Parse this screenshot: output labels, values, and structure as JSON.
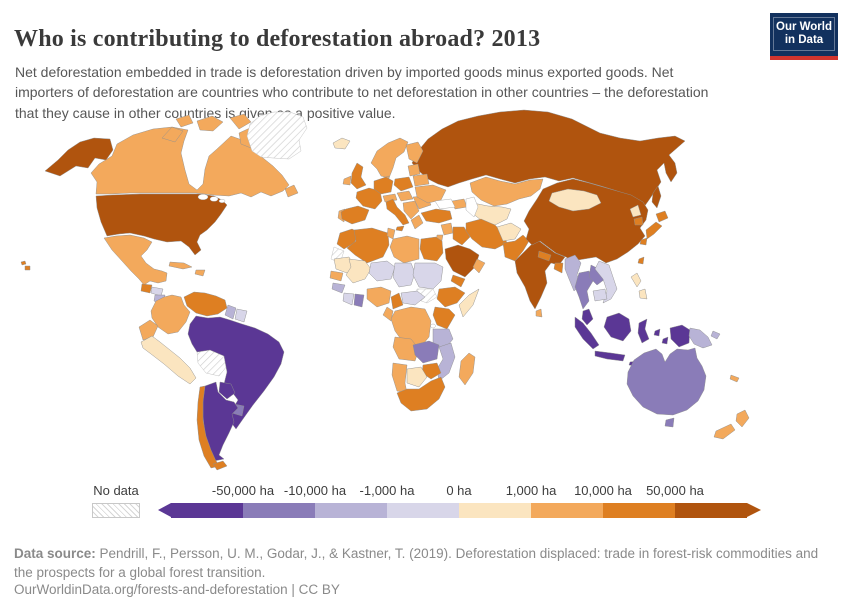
{
  "header": {
    "title": "Who is contributing to deforestation abroad? 2013",
    "logo": {
      "line1": "Our World",
      "line2": "in Data",
      "navy": "#12315e",
      "red": "#d2352e"
    }
  },
  "subtitle": "Net deforestation embedded in trade is deforestation driven by imported goods minus exported goods. Net importers of deforestation are countries who contribute to net deforestation in other countries – the deforestation that they cause in other countries is given as a positive value.",
  "legend": {
    "no_data_label": "No data",
    "tick_labels": [
      "-50,000 ha",
      "-10,000 ha",
      "-1,000 ha",
      "0 ha",
      "1,000 ha",
      "10,000 ha",
      "50,000 ha"
    ],
    "bin_colors": [
      "#5b3795",
      "#8a7cb8",
      "#b8b3d6",
      "#d8d6e9",
      "#fbe5c0",
      "#f3a95c",
      "#de7f22",
      "#b0540e"
    ]
  },
  "map": {
    "region_bins": {
      "alaska": 7,
      "usa": 7,
      "canada": 5,
      "arctic-islands": 5,
      "newfoundland": 5,
      "greenland": -1,
      "iceland": 4,
      "hawaii": 6,
      "mexico": 5,
      "guatemala": 6,
      "honduras": 3,
      "nicaragua": 2,
      "costa-rica": 4,
      "panama": 5,
      "cuba": 5,
      "hispaniola": 5,
      "colombia": 5,
      "venezuela": 6,
      "guyana": 2,
      "suriname": 3,
      "ecuador": 5,
      "peru": 4,
      "bolivia": -1,
      "brazil": 0,
      "paraguay": 0,
      "uruguay": 1,
      "argentina": 0,
      "chile": 6,
      "tierra-del-fuego": 6,
      "norway-sweden": 5,
      "finland": 5,
      "denmark": 5,
      "baltics": 5,
      "belarus": 5,
      "ireland": 5,
      "uk": 6,
      "france": 6,
      "portugal": 5,
      "spain": 6,
      "germany": 6,
      "alps": 5,
      "italy": 6,
      "sicily": 6,
      "poland": 6,
      "czech-hungary": 5,
      "balkans": 5,
      "greece": 5,
      "romania": 5,
      "ukraine": 5,
      "russia": 7,
      "sakhalin": 7,
      "kazakhstan": 5,
      "central-asia": 4,
      "caucasus": 5,
      "turkey": 6,
      "syria": 5,
      "levant": 5,
      "iraq": 6,
      "iran": 6,
      "saudi-arabia": 7,
      "yemen": 6,
      "oman": 5,
      "afghanistan": 4,
      "pakistan": 6,
      "india": 7,
      "nepal": 6,
      "bangladesh": 6,
      "sri-lanka": 5,
      "china": 7,
      "mongolia": 4,
      "north-korea": 4,
      "south-korea": 6,
      "japan": 6,
      "taiwan": 6,
      "myanmar": 2,
      "thailand": 1,
      "laos": 1,
      "vietnam": 3,
      "cambodia": 3,
      "malaysia-peninsula": 0,
      "sumatra": 0,
      "java": 0,
      "borneo": 0,
      "sulawesi": 0,
      "moluccas": 0,
      "lesser-sunda": 0,
      "west-papua": 0,
      "papua-new-guinea": 2,
      "philippines": 4,
      "morocco": 6,
      "western-sahara": -1,
      "algeria": 6,
      "tunisia": 5,
      "libya": 5,
      "egypt": 6,
      "mauritania": 4,
      "mali": 4,
      "niger": 3,
      "chad": 3,
      "sudan": 3,
      "south-sudan": -1,
      "ethiopia": 6,
      "somalia": 4,
      "senegal": 5,
      "guinea": 2,
      "ivory-coast": 3,
      "ghana": 1,
      "nigeria": 5,
      "cameroon": 6,
      "central-african-republic": 3,
      "congo-gabon": 5,
      "dr-congo": 5,
      "kenya": 6,
      "tanzania": 2,
      "angola": 5,
      "zambia": 1,
      "mozambique": 2,
      "zimbabwe": 6,
      "botswana": 4,
      "namibia": 5,
      "south-africa": 6,
      "madagascar": 5,
      "australia": 1,
      "tasmania": 1,
      "new-zealand-north": 5,
      "new-zealand-south": 5,
      "new-caledonia": 5
    }
  },
  "chart_data": {
    "type": "choropleth",
    "title": "Who is contributing to deforestation abroad? 2013",
    "year": 2013,
    "unit": "ha",
    "legend_position": "bottom",
    "bins": [
      {
        "label": "< -50,000 ha",
        "color": "#5b3795"
      },
      {
        "label": "-50,000 to -10,000 ha",
        "color": "#8a7cb8"
      },
      {
        "label": "-10,000 to -1,000 ha",
        "color": "#b8b3d6"
      },
      {
        "label": "-1,000 to 0 ha",
        "color": "#d8d6e9"
      },
      {
        "label": "0 to 1,000 ha",
        "color": "#fbe5c0"
      },
      {
        "label": "1,000 to 10,000 ha",
        "color": "#f3a95c"
      },
      {
        "label": "10,000 to 50,000 ha",
        "color": "#de7f22"
      },
      {
        "label": "> 50,000 ha",
        "color": "#b0540e"
      },
      {
        "label": "No data",
        "color": "hatched"
      }
    ],
    "countries": {
      "United States": "> 50,000 ha",
      "Russia": "> 50,000 ha",
      "China": "> 50,000 ha",
      "India": "> 50,000 ha",
      "Saudi Arabia": "> 50,000 ha",
      "United Kingdom": "10,000 to 50,000 ha",
      "France": "10,000 to 50,000 ha",
      "Germany": "10,000 to 50,000 ha",
      "Spain": "10,000 to 50,000 ha",
      "Italy": "10,000 to 50,000 ha",
      "Poland": "10,000 to 50,000 ha",
      "Turkey": "10,000 to 50,000 ha",
      "Morocco": "10,000 to 50,000 ha",
      "Algeria": "10,000 to 50,000 ha",
      "Egypt": "10,000 to 50,000 ha",
      "Ethiopia": "10,000 to 50,000 ha",
      "Kenya": "10,000 to 50,000 ha",
      "Zimbabwe": "10,000 to 50,000 ha",
      "South Africa": "10,000 to 50,000 ha",
      "Iran": "10,000 to 50,000 ha",
      "Iraq": "10,000 to 50,000 ha",
      "Pakistan": "10,000 to 50,000 ha",
      "Japan": "10,000 to 50,000 ha",
      "South Korea": "10,000 to 50,000 ha",
      "Chile": "10,000 to 50,000 ha",
      "Venezuela": "10,000 to 50,000 ha",
      "Guatemala": "10,000 to 50,000 ha",
      "Nepal": "10,000 to 50,000 ha",
      "Bangladesh": "10,000 to 50,000 ha",
      "Cameroon": "10,000 to 50,000 ha",
      "Yemen": "10,000 to 50,000 ha",
      "Canada": "1,000 to 10,000 ha",
      "Mexico": "1,000 to 10,000 ha",
      "Kazakhstan": "1,000 to 10,000 ha",
      "Libya": "1,000 to 10,000 ha",
      "Nigeria": "1,000 to 10,000 ha",
      "DR Congo": "1,000 to 10,000 ha",
      "Angola": "1,000 to 10,000 ha",
      "Namibia": "1,000 to 10,000 ha",
      "Madagascar": "1,000 to 10,000 ha",
      "Colombia": "1,000 to 10,000 ha",
      "Ecuador": "1,000 to 10,000 ha",
      "Cuba": "1,000 to 10,000 ha",
      "Sweden": "1,000 to 10,000 ha",
      "Norway": "1,000 to 10,000 ha",
      "Finland": "1,000 to 10,000 ha",
      "Ireland": "1,000 to 10,000 ha",
      "Ukraine": "1,000 to 10,000 ha",
      "Romania": "1,000 to 10,000 ha",
      "Sri Lanka": "1,000 to 10,000 ha",
      "New Zealand": "1,000 to 10,000 ha",
      "Senegal": "1,000 to 10,000 ha",
      "Peru": "0 to 1,000 ha",
      "Mongolia": "0 to 1,000 ha",
      "Afghanistan": "0 to 1,000 ha",
      "Uzbekistan": "0 to 1,000 ha",
      "Turkmenistan": "0 to 1,000 ha",
      "Mauritania": "0 to 1,000 ha",
      "Mali": "0 to 1,000 ha",
      "Botswana": "0 to 1,000 ha",
      "North Korea": "0 to 1,000 ha",
      "Philippines": "0 to 1,000 ha",
      "Somalia": "0 to 1,000 ha",
      "Iceland": "0 to 1,000 ha",
      "Costa Rica": "0 to 1,000 ha",
      "Sudan": "-1,000 to 0 ha",
      "Niger": "-1,000 to 0 ha",
      "Chad": "-1,000 to 0 ha",
      "Central African Republic": "-1,000 to 0 ha",
      "Cote d'Ivoire": "-1,000 to 0 ha",
      "Vietnam": "-1,000 to 0 ha",
      "Cambodia": "-1,000 to 0 ha",
      "Suriname": "-1,000 to 0 ha",
      "Honduras": "-1,000 to 0 ha",
      "Myanmar": "-10,000 to -1,000 ha",
      "Tanzania": "-10,000 to -1,000 ha",
      "Mozambique": "-10,000 to -1,000 ha",
      "Papua New Guinea": "-10,000 to -1,000 ha",
      "Guyana": "-10,000 to -1,000 ha",
      "Nicaragua": "-10,000 to -1,000 ha",
      "Guinea": "-10,000 to -1,000 ha",
      "Australia": "-50,000 to -10,000 ha",
      "Uruguay": "-50,000 to -10,000 ha",
      "Thailand": "-50,000 to -10,000 ha",
      "Laos": "-50,000 to -10,000 ha",
      "Zambia": "-50,000 to -10,000 ha",
      "Ghana": "-50,000 to -10,000 ha",
      "Brazil": "< -50,000 ha",
      "Argentina": "< -50,000 ha",
      "Paraguay": "< -50,000 ha",
      "Indonesia": "< -50,000 ha",
      "Malaysia": "< -50,000 ha",
      "Greenland": "No data",
      "Bolivia": "No data",
      "South Sudan": "No data",
      "Western Sahara": "No data"
    }
  },
  "footer": {
    "source_label": "Data source:",
    "source_text": " Pendrill, F., Persson, U. M., Godar, J., & Kastner, T. (2019). Deforestation displaced: trade in forest-risk commodities and the prospects for a global forest transition.",
    "link_text": "OurWorldinData.org/forests-and-deforestation | CC BY"
  }
}
